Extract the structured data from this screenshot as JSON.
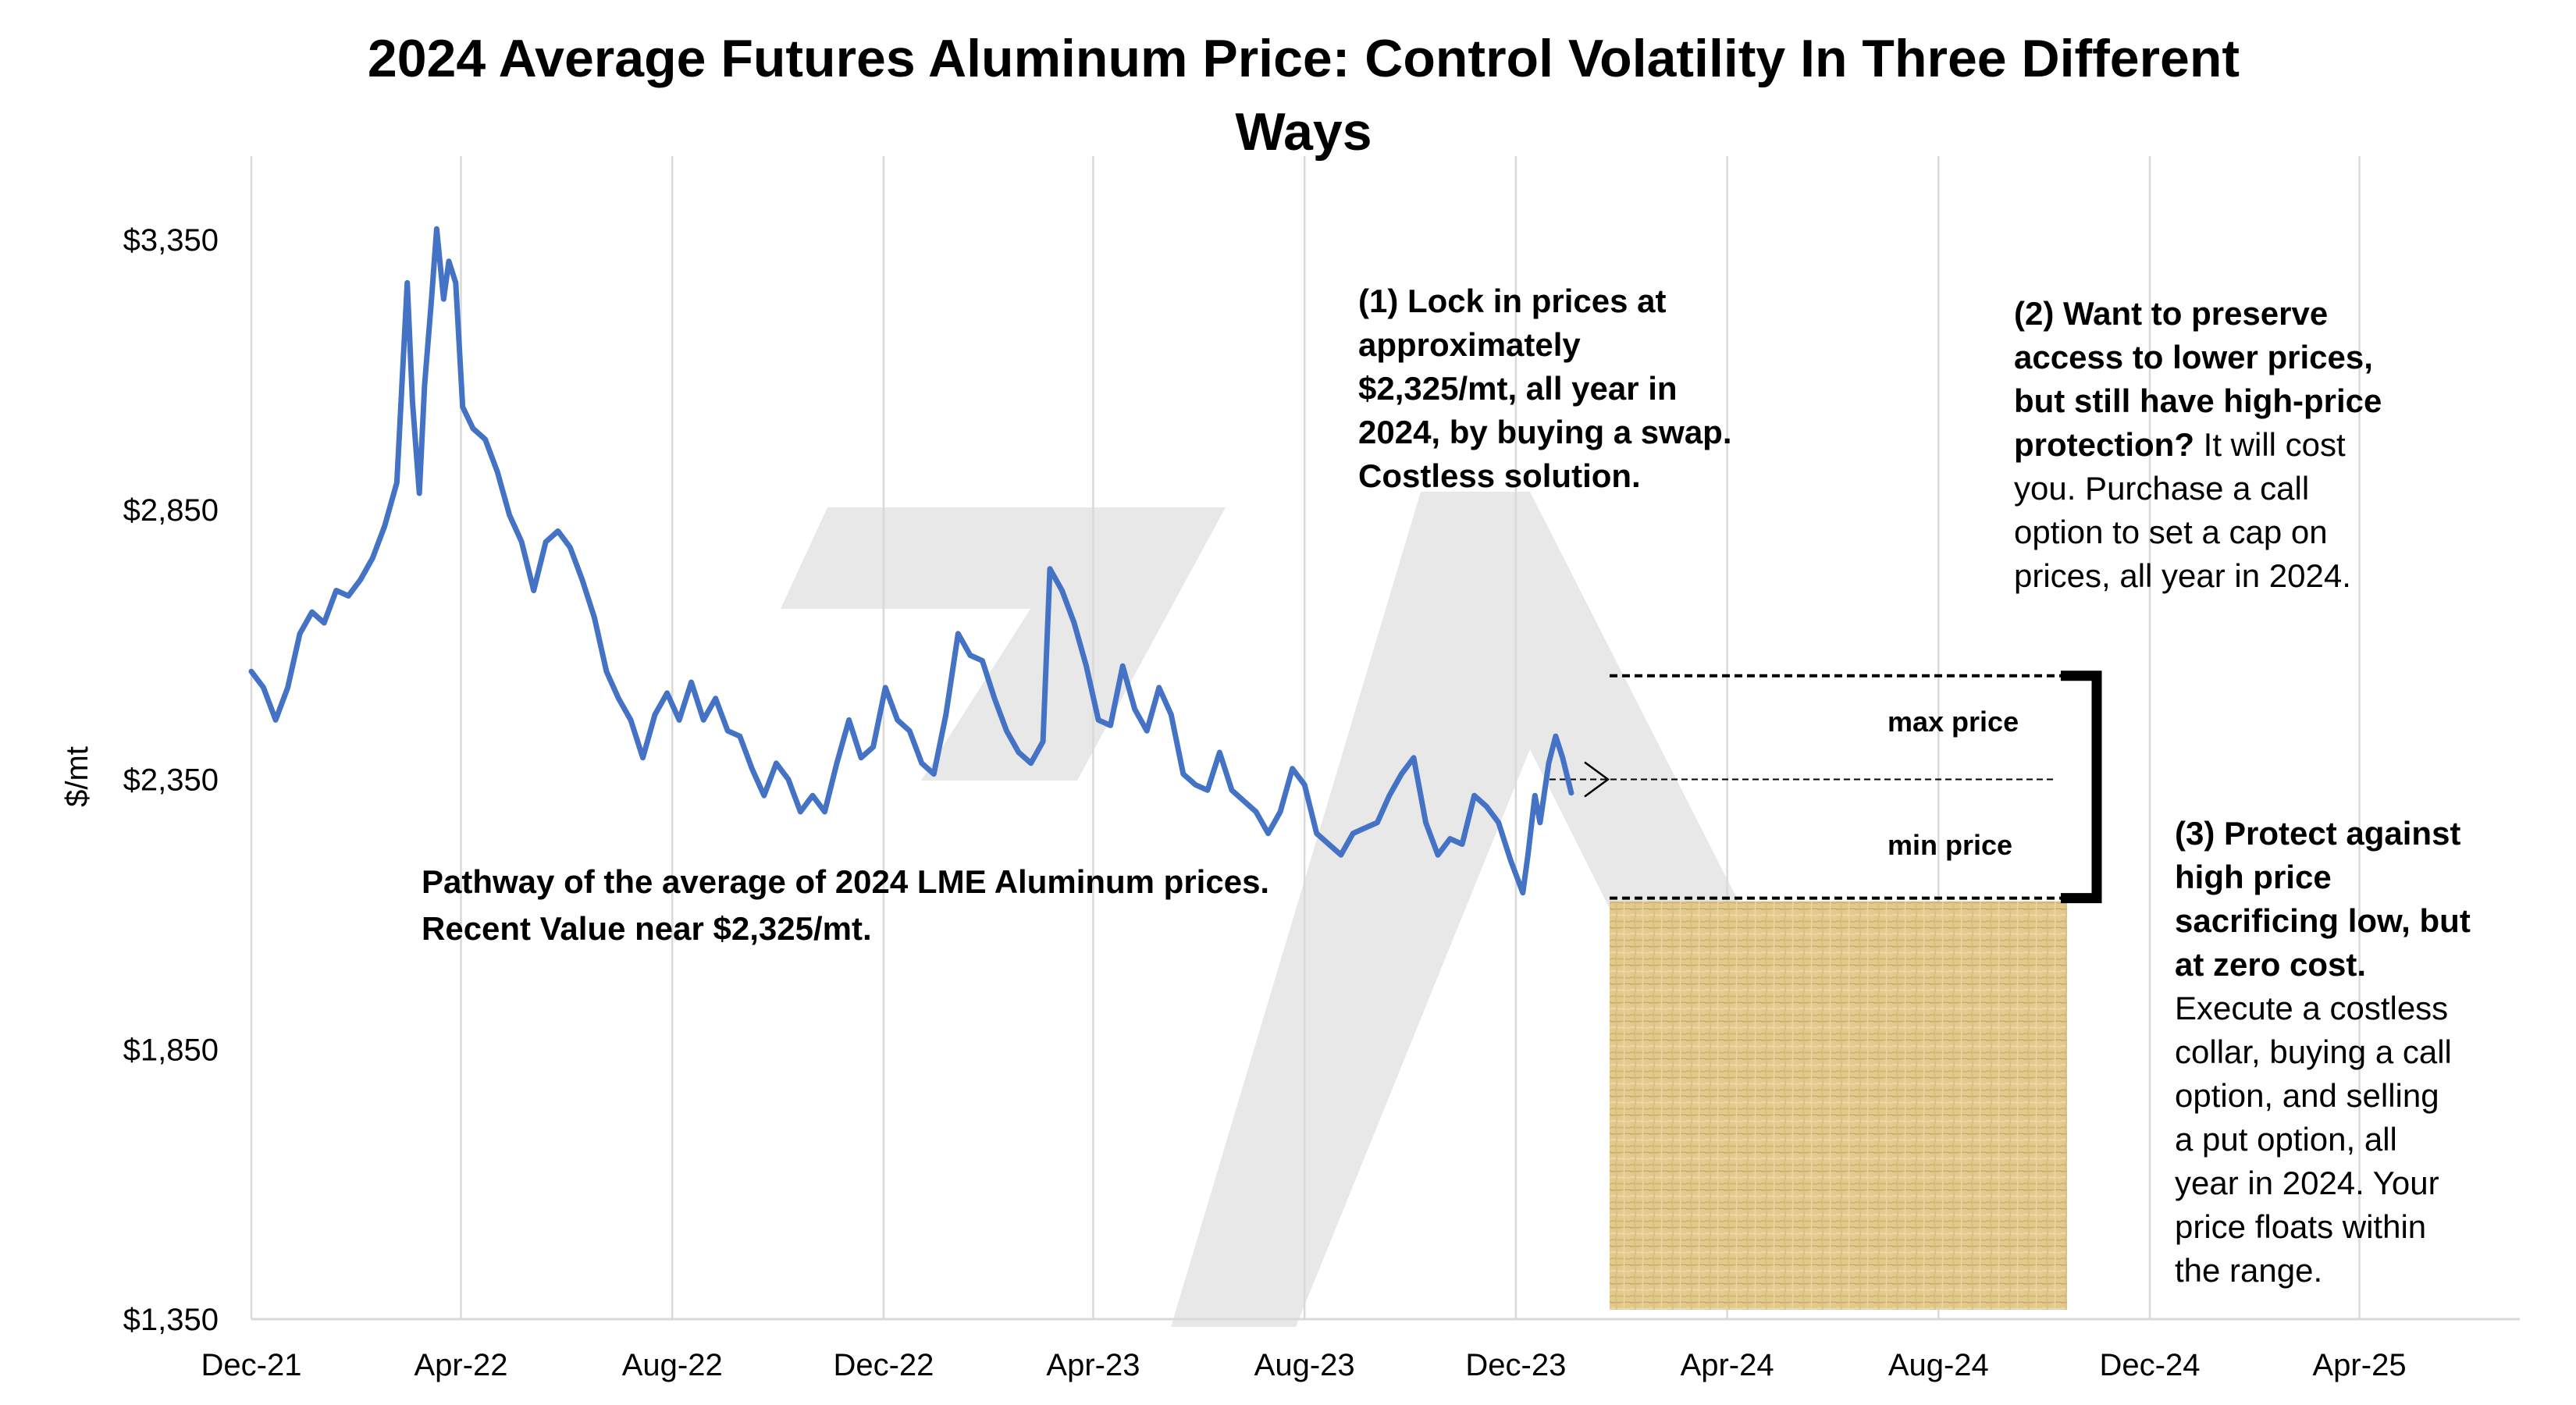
{
  "chart_data": {
    "type": "line",
    "title_line1": "2024 Average Futures Aluminum Price: Control Volatility In Three Different",
    "title_line2": "Ways",
    "ylabel": "$/mt",
    "xlabel": "",
    "ylim": [
      1350,
      3450
    ],
    "yticks": [
      1350,
      1850,
      2350,
      2850,
      3350
    ],
    "ytick_labels": [
      "$1,350",
      "$1,850",
      "$2,350",
      "$2,850",
      "$3,350"
    ],
    "xlim": [
      "2021-12-01",
      "2025-06-15"
    ],
    "xticks": [
      "2021-12-01",
      "2022-04-01",
      "2022-08-01",
      "2022-12-01",
      "2023-04-01",
      "2023-08-01",
      "2023-12-01",
      "2024-04-01",
      "2024-08-01",
      "2024-12-01",
      "2025-04-01"
    ],
    "xtick_labels": [
      "Dec-21",
      "Apr-22",
      "Aug-22",
      "Dec-22",
      "Apr-23",
      "Aug-23",
      "Dec-23",
      "Apr-24",
      "Aug-24",
      "Dec-24",
      "Apr-25"
    ],
    "grid": "vertical",
    "line_color": "#4472C4",
    "series": [
      {
        "points": [
          [
            "2021-12-01",
            2550
          ],
          [
            "2021-12-08",
            2520
          ],
          [
            "2021-12-15",
            2460
          ],
          [
            "2021-12-22",
            2520
          ],
          [
            "2021-12-29",
            2620
          ],
          [
            "2022-01-05",
            2660
          ],
          [
            "2022-01-12",
            2640
          ],
          [
            "2022-01-19",
            2700
          ],
          [
            "2022-01-26",
            2690
          ],
          [
            "2022-02-02",
            2720
          ],
          [
            "2022-02-09",
            2760
          ],
          [
            "2022-02-16",
            2820
          ],
          [
            "2022-02-23",
            2900
          ],
          [
            "2022-03-01",
            3270
          ],
          [
            "2022-03-04",
            3050
          ],
          [
            "2022-03-08",
            2880
          ],
          [
            "2022-03-11",
            3080
          ],
          [
            "2022-03-15",
            3240
          ],
          [
            "2022-03-18",
            3370
          ],
          [
            "2022-03-22",
            3240
          ],
          [
            "2022-03-25",
            3310
          ],
          [
            "2022-03-29",
            3270
          ],
          [
            "2022-04-02",
            3040
          ],
          [
            "2022-04-08",
            3000
          ],
          [
            "2022-04-15",
            2980
          ],
          [
            "2022-04-22",
            2920
          ],
          [
            "2022-04-29",
            2840
          ],
          [
            "2022-05-06",
            2790
          ],
          [
            "2022-05-13",
            2700
          ],
          [
            "2022-05-20",
            2790
          ],
          [
            "2022-05-27",
            2810
          ],
          [
            "2022-06-03",
            2780
          ],
          [
            "2022-06-10",
            2720
          ],
          [
            "2022-06-17",
            2650
          ],
          [
            "2022-06-24",
            2550
          ],
          [
            "2022-07-01",
            2500
          ],
          [
            "2022-07-08",
            2460
          ],
          [
            "2022-07-15",
            2390
          ],
          [
            "2022-07-22",
            2470
          ],
          [
            "2022-07-29",
            2510
          ],
          [
            "2022-08-05",
            2460
          ],
          [
            "2022-08-12",
            2530
          ],
          [
            "2022-08-19",
            2460
          ],
          [
            "2022-08-26",
            2500
          ],
          [
            "2022-09-02",
            2440
          ],
          [
            "2022-09-09",
            2430
          ],
          [
            "2022-09-16",
            2370
          ],
          [
            "2022-09-23",
            2320
          ],
          [
            "2022-09-30",
            2380
          ],
          [
            "2022-10-07",
            2350
          ],
          [
            "2022-10-14",
            2290
          ],
          [
            "2022-10-21",
            2320
          ],
          [
            "2022-10-28",
            2290
          ],
          [
            "2022-11-04",
            2380
          ],
          [
            "2022-11-11",
            2460
          ],
          [
            "2022-11-18",
            2390
          ],
          [
            "2022-11-25",
            2410
          ],
          [
            "2022-12-02",
            2520
          ],
          [
            "2022-12-09",
            2460
          ],
          [
            "2022-12-16",
            2440
          ],
          [
            "2022-12-23",
            2380
          ],
          [
            "2022-12-30",
            2360
          ],
          [
            "2023-01-06",
            2470
          ],
          [
            "2023-01-13",
            2620
          ],
          [
            "2023-01-20",
            2580
          ],
          [
            "2023-01-27",
            2570
          ],
          [
            "2023-02-03",
            2500
          ],
          [
            "2023-02-10",
            2440
          ],
          [
            "2023-02-17",
            2400
          ],
          [
            "2023-02-24",
            2380
          ],
          [
            "2023-03-03",
            2420
          ],
          [
            "2023-03-07",
            2740
          ],
          [
            "2023-03-14",
            2700
          ],
          [
            "2023-03-21",
            2640
          ],
          [
            "2023-03-28",
            2560
          ],
          [
            "2023-04-04",
            2460
          ],
          [
            "2023-04-11",
            2450
          ],
          [
            "2023-04-18",
            2560
          ],
          [
            "2023-04-25",
            2480
          ],
          [
            "2023-05-02",
            2440
          ],
          [
            "2023-05-09",
            2520
          ],
          [
            "2023-05-16",
            2470
          ],
          [
            "2023-05-23",
            2360
          ],
          [
            "2023-05-30",
            2340
          ],
          [
            "2023-06-06",
            2330
          ],
          [
            "2023-06-13",
            2400
          ],
          [
            "2023-06-20",
            2330
          ],
          [
            "2023-06-27",
            2310
          ],
          [
            "2023-07-04",
            2290
          ],
          [
            "2023-07-11",
            2250
          ],
          [
            "2023-07-18",
            2290
          ],
          [
            "2023-07-25",
            2370
          ],
          [
            "2023-08-01",
            2340
          ],
          [
            "2023-08-08",
            2250
          ],
          [
            "2023-08-15",
            2230
          ],
          [
            "2023-08-22",
            2210
          ],
          [
            "2023-08-29",
            2250
          ],
          [
            "2023-09-05",
            2260
          ],
          [
            "2023-09-12",
            2270
          ],
          [
            "2023-09-19",
            2320
          ],
          [
            "2023-09-26",
            2360
          ],
          [
            "2023-10-03",
            2390
          ],
          [
            "2023-10-10",
            2270
          ],
          [
            "2023-10-17",
            2210
          ],
          [
            "2023-10-24",
            2240
          ],
          [
            "2023-10-31",
            2230
          ],
          [
            "2023-11-07",
            2320
          ],
          [
            "2023-11-14",
            2300
          ],
          [
            "2023-11-21",
            2270
          ],
          [
            "2023-11-28",
            2200
          ],
          [
            "2023-12-05",
            2140
          ],
          [
            "2023-12-08",
            2210
          ],
          [
            "2023-12-12",
            2320
          ],
          [
            "2023-12-15",
            2270
          ],
          [
            "2023-12-20",
            2380
          ],
          [
            "2023-12-24",
            2430
          ],
          [
            "2023-12-28",
            2390
          ],
          [
            "2024-01-02",
            2325
          ]
        ]
      }
    ],
    "annotations": {
      "pathway": {
        "line1": "Pathway of the average of 2024 LME Aluminum prices.",
        "line2": "Recent Value near $2,325/mt."
      },
      "option1": [
        "(1) Lock in prices at",
        "approximately",
        "$2,325/mt, all year in",
        "2024, by buying a swap.",
        "Costless solution."
      ],
      "option2_bold": [
        "(2) Want to preserve",
        "access to lower prices,",
        "but still have high-price",
        "protection?"
      ],
      "option2_normal_suffix": " It will cost",
      "option2_normal": [
        "you. Purchase a call",
        "option to set a cap on",
        "prices, all year in 2024."
      ],
      "option3_bold": [
        "(3) Protect against",
        "high price",
        "sacrificing low, but",
        "at zero cost."
      ],
      "option3_normal": [
        "Execute a costless",
        "collar, buying a call",
        "option, and selling",
        "a put option, all",
        "year in 2024.  Your",
        "price floats within",
        "the range."
      ],
      "max_price_label": "max price",
      "min_price_label": "min price",
      "max_price_level": 2542,
      "min_price_level": 2130,
      "swap_level": 2350,
      "texture_color": "#e0c68c"
    }
  }
}
